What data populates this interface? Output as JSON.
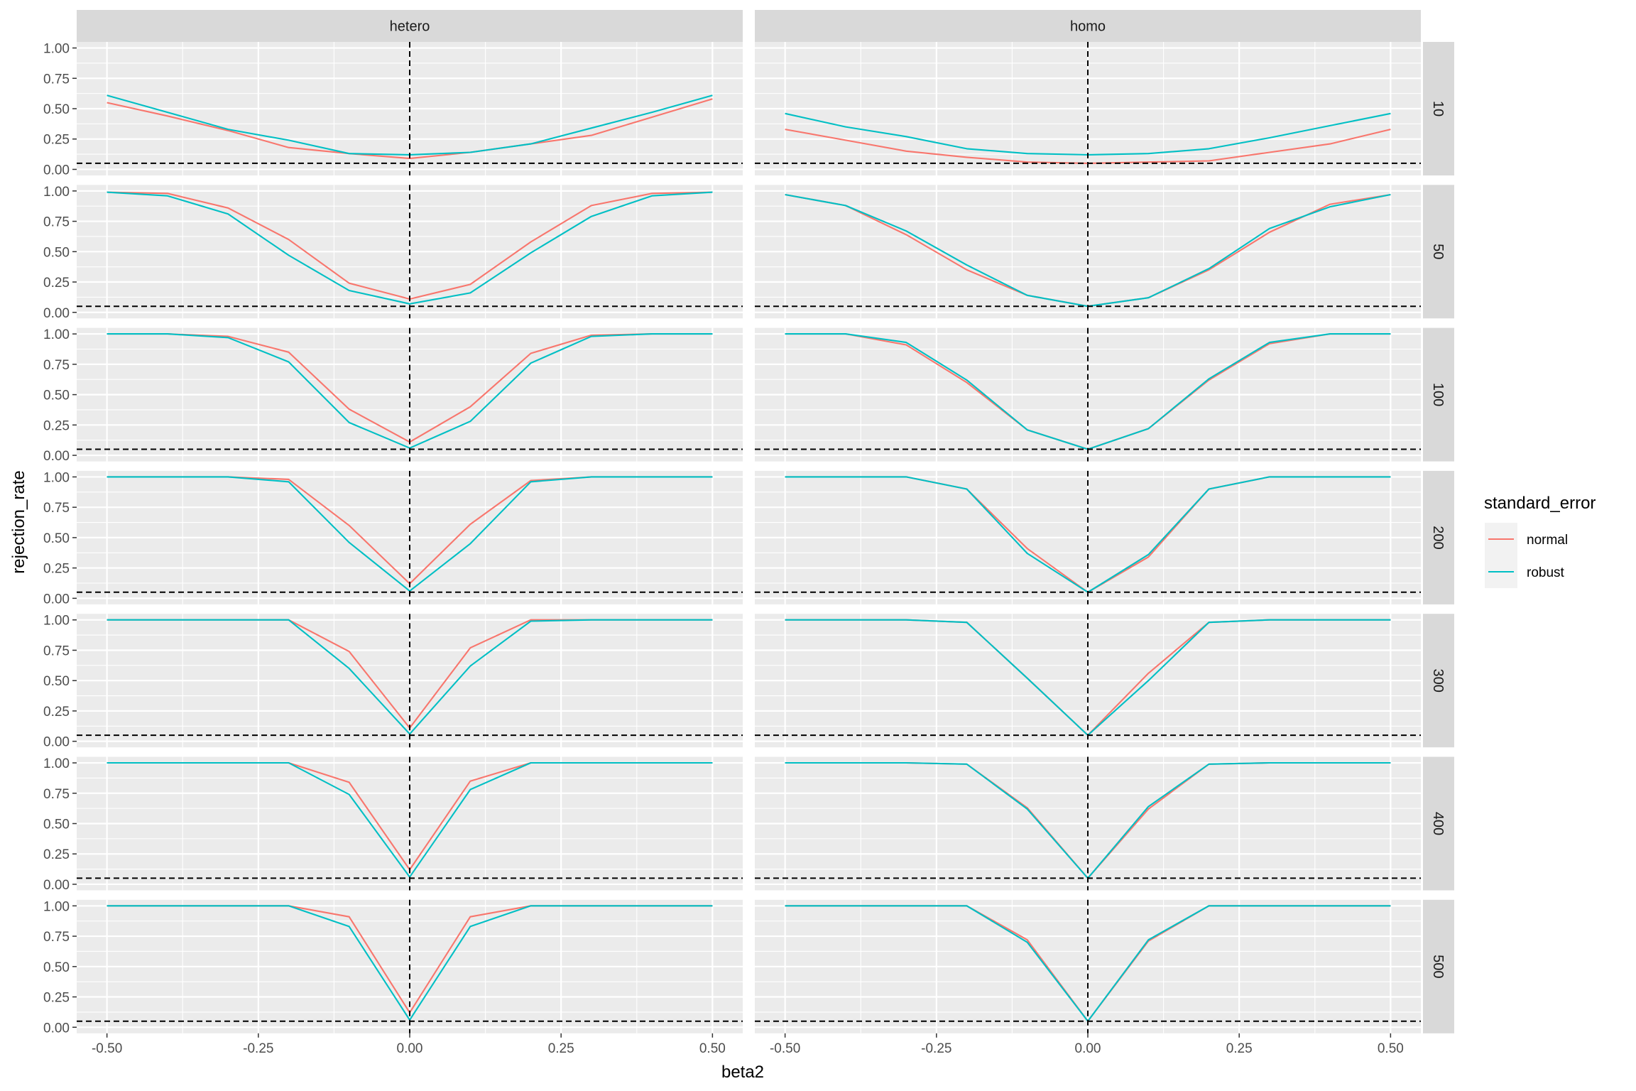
{
  "chart_data": {
    "type": "line",
    "xlabel": "beta2",
    "ylabel": "rejection_rate",
    "x": [
      -0.5,
      -0.4,
      -0.3,
      -0.2,
      -0.1,
      0,
      0.1,
      0.2,
      0.3,
      0.4,
      0.5
    ],
    "xlim": [
      -0.55,
      0.55
    ],
    "ylim": [
      0,
      1
    ],
    "x_ticks": [
      -0.5,
      -0.25,
      0,
      0.25,
      0.5
    ],
    "x_tick_labels": [
      "-0.50",
      "-0.25",
      "0.00",
      "0.25",
      "0.50"
    ],
    "y_ticks": [
      0,
      0.25,
      0.5,
      0.75,
      1
    ],
    "y_tick_labels": [
      "0.00",
      "0.25",
      "0.50",
      "0.75",
      "1.00"
    ],
    "reference_lines": {
      "vline_x": 0,
      "hline_y": 0.05
    },
    "grid": true,
    "legend": {
      "title": "standard_error",
      "position": "right",
      "entries": [
        {
          "name": "normal",
          "color": "#F8766D"
        },
        {
          "name": "robust",
          "color": "#00BFC4"
        }
      ]
    },
    "columns": [
      "hetero",
      "homo"
    ],
    "rows": [
      "10",
      "50",
      "100",
      "200",
      "300",
      "400",
      "500"
    ],
    "panels": [
      {
        "col": "hetero",
        "row": "10",
        "series": [
          {
            "name": "normal",
            "values": [
              0.55,
              0.44,
              0.32,
              0.18,
              0.13,
              0.09,
              0.14,
              0.21,
              0.28,
              0.43,
              0.58
            ]
          },
          {
            "name": "robust",
            "values": [
              0.61,
              0.47,
              0.33,
              0.24,
              0.13,
              0.12,
              0.14,
              0.21,
              0.34,
              0.47,
              0.61
            ]
          }
        ]
      },
      {
        "col": "homo",
        "row": "10",
        "series": [
          {
            "name": "normal",
            "values": [
              0.33,
              0.24,
              0.15,
              0.1,
              0.06,
              0.05,
              0.06,
              0.07,
              0.14,
              0.21,
              0.33
            ]
          },
          {
            "name": "robust",
            "values": [
              0.46,
              0.35,
              0.27,
              0.17,
              0.13,
              0.12,
              0.13,
              0.17,
              0.26,
              0.36,
              0.46
            ]
          }
        ]
      },
      {
        "col": "hetero",
        "row": "50",
        "series": [
          {
            "name": "normal",
            "values": [
              0.99,
              0.98,
              0.86,
              0.6,
              0.24,
              0.11,
              0.23,
              0.58,
              0.88,
              0.98,
              0.99
            ]
          },
          {
            "name": "robust",
            "values": [
              0.99,
              0.96,
              0.81,
              0.47,
              0.18,
              0.07,
              0.16,
              0.49,
              0.79,
              0.96,
              0.99
            ]
          }
        ]
      },
      {
        "col": "homo",
        "row": "50",
        "series": [
          {
            "name": "normal",
            "values": [
              0.97,
              0.88,
              0.64,
              0.35,
              0.14,
              0.05,
              0.12,
              0.35,
              0.66,
              0.89,
              0.97
            ]
          },
          {
            "name": "robust",
            "values": [
              0.97,
              0.88,
              0.67,
              0.39,
              0.14,
              0.05,
              0.12,
              0.36,
              0.69,
              0.87,
              0.97
            ]
          }
        ]
      },
      {
        "col": "hetero",
        "row": "100",
        "series": [
          {
            "name": "normal",
            "values": [
              1.0,
              1.0,
              0.98,
              0.85,
              0.38,
              0.11,
              0.4,
              0.84,
              0.99,
              1.0,
              1.0
            ]
          },
          {
            "name": "robust",
            "values": [
              1.0,
              1.0,
              0.97,
              0.77,
              0.27,
              0.06,
              0.28,
              0.76,
              0.98,
              1.0,
              1.0
            ]
          }
        ]
      },
      {
        "col": "homo",
        "row": "100",
        "series": [
          {
            "name": "normal",
            "values": [
              1.0,
              1.0,
              0.91,
              0.6,
              0.21,
              0.05,
              0.22,
              0.62,
              0.92,
              1.0,
              1.0
            ]
          },
          {
            "name": "robust",
            "values": [
              1.0,
              1.0,
              0.93,
              0.62,
              0.21,
              0.05,
              0.22,
              0.63,
              0.93,
              1.0,
              1.0
            ]
          }
        ]
      },
      {
        "col": "hetero",
        "row": "200",
        "series": [
          {
            "name": "normal",
            "values": [
              1.0,
              1.0,
              1.0,
              0.98,
              0.6,
              0.12,
              0.61,
              0.97,
              1.0,
              1.0,
              1.0
            ]
          },
          {
            "name": "robust",
            "values": [
              1.0,
              1.0,
              1.0,
              0.96,
              0.46,
              0.06,
              0.45,
              0.96,
              1.0,
              1.0,
              1.0
            ]
          }
        ]
      },
      {
        "col": "homo",
        "row": "200",
        "series": [
          {
            "name": "normal",
            "values": [
              1.0,
              1.0,
              1.0,
              0.9,
              0.41,
              0.05,
              0.34,
              0.9,
              1.0,
              1.0,
              1.0
            ]
          },
          {
            "name": "robust",
            "values": [
              1.0,
              1.0,
              1.0,
              0.9,
              0.37,
              0.05,
              0.36,
              0.9,
              1.0,
              1.0,
              1.0
            ]
          }
        ]
      },
      {
        "col": "hetero",
        "row": "300",
        "series": [
          {
            "name": "normal",
            "values": [
              1.0,
              1.0,
              1.0,
              1.0,
              0.74,
              0.11,
              0.77,
              1.0,
              1.0,
              1.0,
              1.0
            ]
          },
          {
            "name": "robust",
            "values": [
              1.0,
              1.0,
              1.0,
              1.0,
              0.6,
              0.06,
              0.62,
              0.99,
              1.0,
              1.0,
              1.0
            ]
          }
        ]
      },
      {
        "col": "homo",
        "row": "300",
        "series": [
          {
            "name": "normal",
            "values": [
              1.0,
              1.0,
              1.0,
              0.98,
              0.52,
              0.05,
              0.56,
              0.98,
              1.0,
              1.0,
              1.0
            ]
          },
          {
            "name": "robust",
            "values": [
              1.0,
              1.0,
              1.0,
              0.98,
              0.52,
              0.05,
              0.5,
              0.98,
              1.0,
              1.0,
              1.0
            ]
          }
        ]
      },
      {
        "col": "hetero",
        "row": "400",
        "series": [
          {
            "name": "normal",
            "values": [
              1.0,
              1.0,
              1.0,
              1.0,
              0.84,
              0.12,
              0.85,
              1.0,
              1.0,
              1.0,
              1.0
            ]
          },
          {
            "name": "robust",
            "values": [
              1.0,
              1.0,
              1.0,
              1.0,
              0.74,
              0.06,
              0.78,
              1.0,
              1.0,
              1.0,
              1.0
            ]
          }
        ]
      },
      {
        "col": "homo",
        "row": "400",
        "series": [
          {
            "name": "normal",
            "values": [
              1.0,
              1.0,
              1.0,
              0.99,
              0.63,
              0.05,
              0.62,
              0.99,
              1.0,
              1.0,
              1.0
            ]
          },
          {
            "name": "robust",
            "values": [
              1.0,
              1.0,
              1.0,
              0.99,
              0.62,
              0.05,
              0.64,
              0.99,
              1.0,
              1.0,
              1.0
            ]
          }
        ]
      },
      {
        "col": "hetero",
        "row": "500",
        "series": [
          {
            "name": "normal",
            "values": [
              1.0,
              1.0,
              1.0,
              1.0,
              0.91,
              0.12,
              0.91,
              1.0,
              1.0,
              1.0,
              1.0
            ]
          },
          {
            "name": "robust",
            "values": [
              1.0,
              1.0,
              1.0,
              1.0,
              0.83,
              0.06,
              0.83,
              1.0,
              1.0,
              1.0,
              1.0
            ]
          }
        ]
      },
      {
        "col": "homo",
        "row": "500",
        "series": [
          {
            "name": "normal",
            "values": [
              1.0,
              1.0,
              1.0,
              1.0,
              0.72,
              0.05,
              0.71,
              1.0,
              1.0,
              1.0,
              1.0
            ]
          },
          {
            "name": "robust",
            "values": [
              1.0,
              1.0,
              1.0,
              1.0,
              0.7,
              0.05,
              0.72,
              1.0,
              1.0,
              1.0,
              1.0
            ]
          }
        ]
      }
    ]
  }
}
